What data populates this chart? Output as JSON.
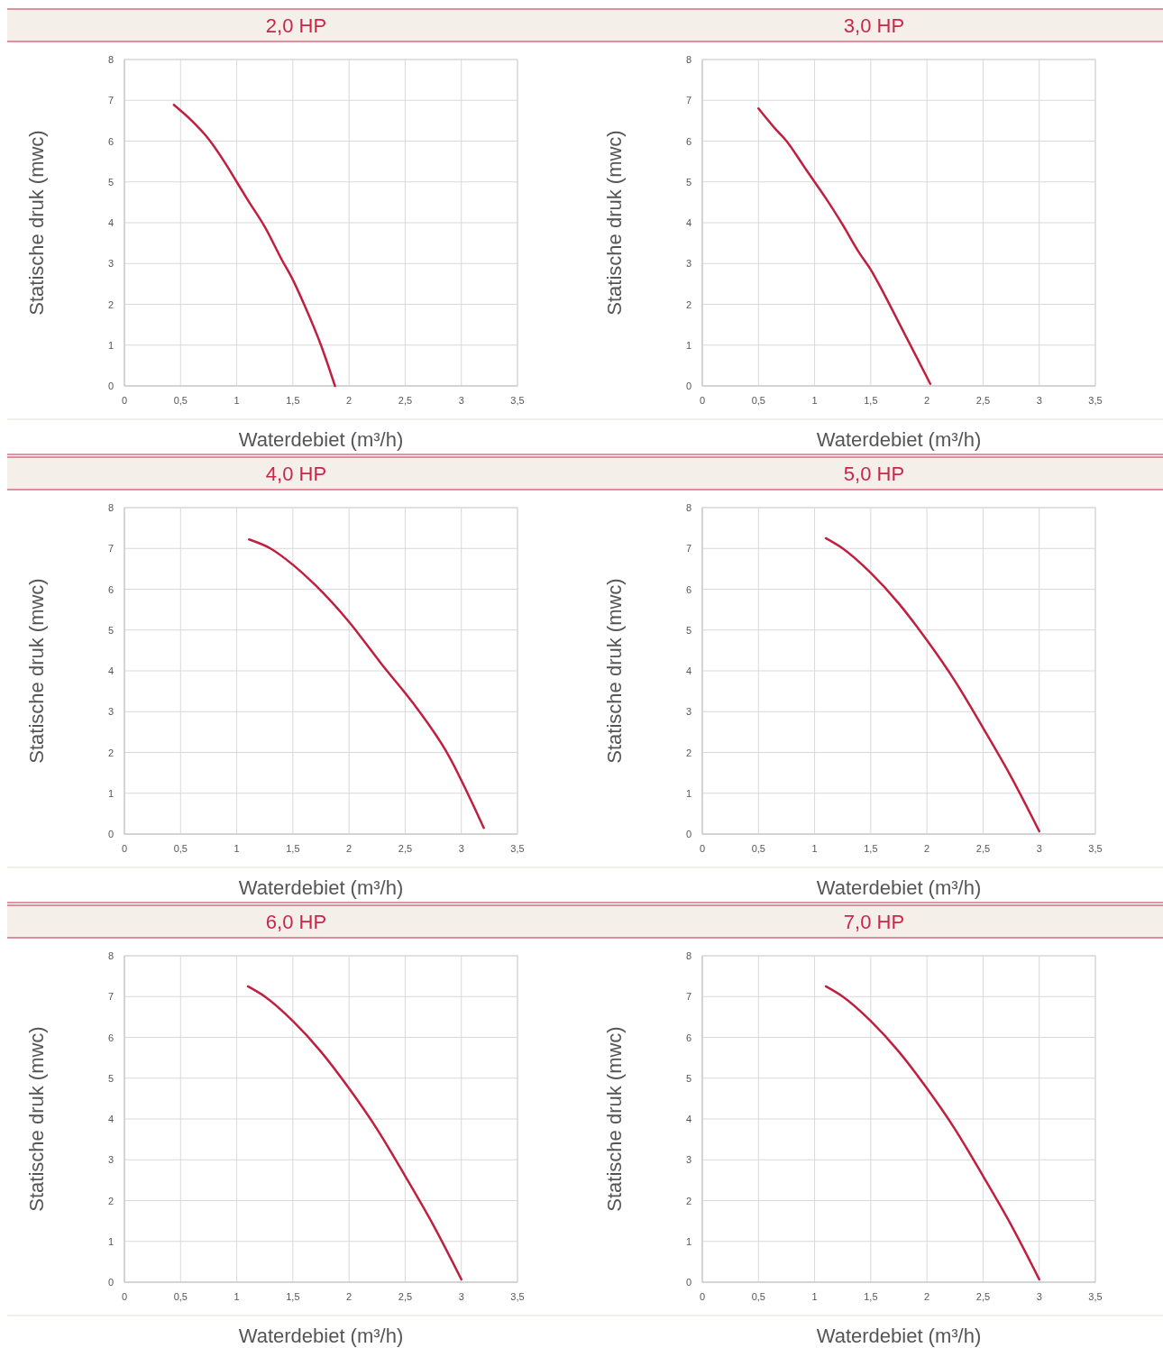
{
  "chart_data": [
    {
      "type": "line",
      "title": "2,0 HP",
      "xlabel": "Waterdebiet (m³/h)",
      "ylabel": "Statische druk (mwc)",
      "color": "#c0203f",
      "x": [
        0.44,
        0.6,
        0.75,
        0.9,
        1.0,
        1.1,
        1.25,
        1.4,
        1.5,
        1.6,
        1.75,
        1.875
      ],
      "values": [
        6.89,
        6.5,
        6.05,
        5.45,
        5.0,
        4.55,
        3.9,
        3.1,
        2.6,
        2.0,
        1.0,
        0
      ],
      "xlim": [
        0,
        3.5
      ],
      "xticks": [
        0,
        {
          "value": 0.5,
          "label": "0,5"
        },
        1,
        {
          "value": 1.5,
          "label": "1,5"
        },
        2,
        {
          "value": 2.5,
          "label": "2,5"
        },
        3,
        {
          "value": 3.5,
          "label": "3,5"
        }
      ],
      "ylim": [
        0,
        8
      ],
      "yticks": [
        0,
        1,
        2,
        3,
        4,
        5,
        6,
        7,
        8
      ],
      "grid": true
    },
    {
      "type": "line",
      "title": "3,0 HP",
      "xlabel": "Waterdebiet (m³/h)",
      "ylabel": "Statische druk (mwc)",
      "color": "#c0203f",
      "x": [
        0.5,
        0.65,
        0.75,
        0.9,
        1.0,
        1.1,
        1.25,
        1.4,
        1.5,
        1.6,
        1.75,
        1.9,
        2.03
      ],
      "values": [
        6.8,
        6.3,
        6.0,
        5.4,
        5.0,
        4.6,
        3.95,
        3.25,
        2.85,
        2.35,
        1.55,
        0.75,
        0.05
      ],
      "xlim": [
        0,
        3.5
      ],
      "xticks": [
        0,
        {
          "value": 0.5,
          "label": "0,5"
        },
        1,
        {
          "value": 1.5,
          "label": "1,5"
        },
        2,
        {
          "value": 2.5,
          "label": "2,5"
        },
        3,
        {
          "value": 3.5,
          "label": "3,5"
        }
      ],
      "ylim": [
        0,
        8
      ],
      "yticks": [
        0,
        1,
        2,
        3,
        4,
        5,
        6,
        7,
        8
      ],
      "grid": true
    },
    {
      "type": "line",
      "title": "4,0 HP",
      "xlabel": "Waterdebiet (m³/h)",
      "ylabel": "Statische druk (mwc)",
      "color": "#c0203f",
      "x": [
        1.11,
        1.3,
        1.5,
        1.7,
        2.0,
        2.28,
        2.6,
        2.86,
        3.2
      ],
      "values": [
        7.22,
        7.0,
        6.6,
        6.1,
        5.2,
        4.2,
        3.1,
        2.05,
        0.15
      ],
      "xlim": [
        0,
        3.5
      ],
      "xticks": [
        0,
        {
          "value": 0.5,
          "label": "0,5"
        },
        1,
        {
          "value": 1.5,
          "label": "1,5"
        },
        2,
        {
          "value": 2.5,
          "label": "2,5"
        },
        3,
        {
          "value": 3.5,
          "label": "3,5"
        }
      ],
      "ylim": [
        0,
        8
      ],
      "yticks": [
        0,
        1,
        2,
        3,
        4,
        5,
        6,
        7,
        8
      ],
      "grid": true
    },
    {
      "type": "line",
      "title": "5,0 HP",
      "xlabel": "Waterdebiet (m³/h)",
      "ylabel": "Statische druk (mwc)",
      "color": "#c0203f",
      "x": [
        1.1,
        1.25,
        1.5,
        1.75,
        2.0,
        2.25,
        2.5,
        2.75,
        3.0
      ],
      "values": [
        7.25,
        7.0,
        6.4,
        5.65,
        4.75,
        3.75,
        2.6,
        1.4,
        0.07
      ],
      "xlim": [
        0,
        3.5
      ],
      "xticks": [
        0,
        {
          "value": 0.5,
          "label": "0,5"
        },
        1,
        {
          "value": 1.5,
          "label": "1,5"
        },
        2,
        {
          "value": 2.5,
          "label": "2,5"
        },
        3,
        {
          "value": 3.5,
          "label": "3,5"
        }
      ],
      "ylim": [
        0,
        8
      ],
      "yticks": [
        0,
        1,
        2,
        3,
        4,
        5,
        6,
        7,
        8
      ],
      "grid": true
    },
    {
      "type": "line",
      "title": "6,0 HP",
      "xlabel": "Waterdebiet (m³/h)",
      "ylabel": "Statische druk (mwc)",
      "color": "#c0203f",
      "x": [
        1.1,
        1.25,
        1.5,
        1.75,
        2.0,
        2.25,
        2.5,
        2.75,
        3.0
      ],
      "values": [
        7.25,
        7.0,
        6.4,
        5.65,
        4.75,
        3.75,
        2.6,
        1.4,
        0.07
      ],
      "xlim": [
        0,
        3.5
      ],
      "xticks": [
        0,
        {
          "value": 0.5,
          "label": "0,5"
        },
        1,
        {
          "value": 1.5,
          "label": "1,5"
        },
        2,
        {
          "value": 2.5,
          "label": "2,5"
        },
        3,
        {
          "value": 3.5,
          "label": "3,5"
        }
      ],
      "ylim": [
        0,
        8
      ],
      "yticks": [
        0,
        1,
        2,
        3,
        4,
        5,
        6,
        7,
        8
      ],
      "grid": true
    },
    {
      "type": "line",
      "title": "7,0 HP",
      "xlabel": "Waterdebiet (m³/h)",
      "ylabel": "Statische druk (mwc)",
      "color": "#c0203f",
      "x": [
        1.1,
        1.25,
        1.5,
        1.75,
        2.0,
        2.25,
        2.5,
        2.75,
        3.0
      ],
      "values": [
        7.25,
        7.0,
        6.4,
        5.65,
        4.75,
        3.75,
        2.6,
        1.4,
        0.07
      ],
      "xlim": [
        0,
        3.5
      ],
      "xticks": [
        0,
        {
          "value": 0.5,
          "label": "0,5"
        },
        1,
        {
          "value": 1.5,
          "label": "1,5"
        },
        2,
        {
          "value": 2.5,
          "label": "2,5"
        },
        3,
        {
          "value": 3.5,
          "label": "3,5"
        }
      ],
      "ylim": [
        0,
        8
      ],
      "yticks": [
        0,
        1,
        2,
        3,
        4,
        5,
        6,
        7,
        8
      ],
      "grid": true
    }
  ]
}
